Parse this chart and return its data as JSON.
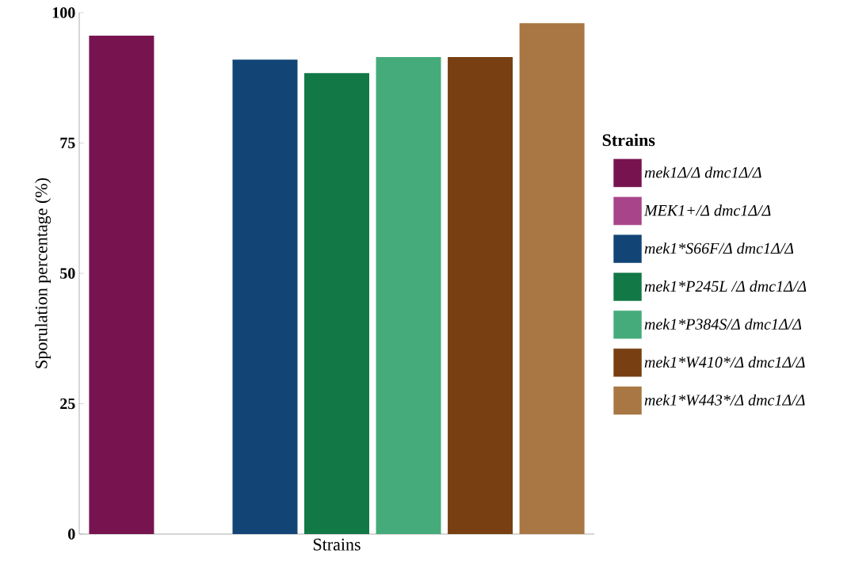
{
  "chart_data": {
    "type": "bar",
    "xlabel": "Strains",
    "ylabel": "Sporulation percentage (%)",
    "legend_title": "Strains",
    "legend": "right",
    "tick_labels": "y",
    "categories": [
      null
    ],
    "ylim": [
      0,
      100
    ],
    "yticks": [
      0,
      25,
      50,
      75,
      100
    ],
    "series": [
      {
        "name": "mek1Δ/Δ dmc1Δ/Δ",
        "color": "#771450",
        "values": [
          95.6
        ]
      },
      {
        "name": "MEK1+/Δ dmc1Δ/Δ",
        "color": "#a8448a",
        "values": [
          null
        ]
      },
      {
        "name": "mek1*S66F/Δ dmc1Δ/Δ",
        "color": "#124576",
        "values": [
          91.0
        ]
      },
      {
        "name": "mek1*P245L /Δ dmc1Δ/Δ",
        "color": "#127846",
        "values": [
          88.4
        ]
      },
      {
        "name": "mek1*P384S/Δ dmc1Δ/Δ",
        "color": "#46ab7a",
        "values": [
          91.5
        ]
      },
      {
        "name": "mek1*W410*/Δ dmc1Δ/Δ",
        "color": "#773f12",
        "values": [
          91.5
        ]
      },
      {
        "name": "mek1*W443*/Δ dmc1Δ/Δ",
        "color": "#a97743",
        "values": [
          98.0
        ]
      }
    ]
  }
}
